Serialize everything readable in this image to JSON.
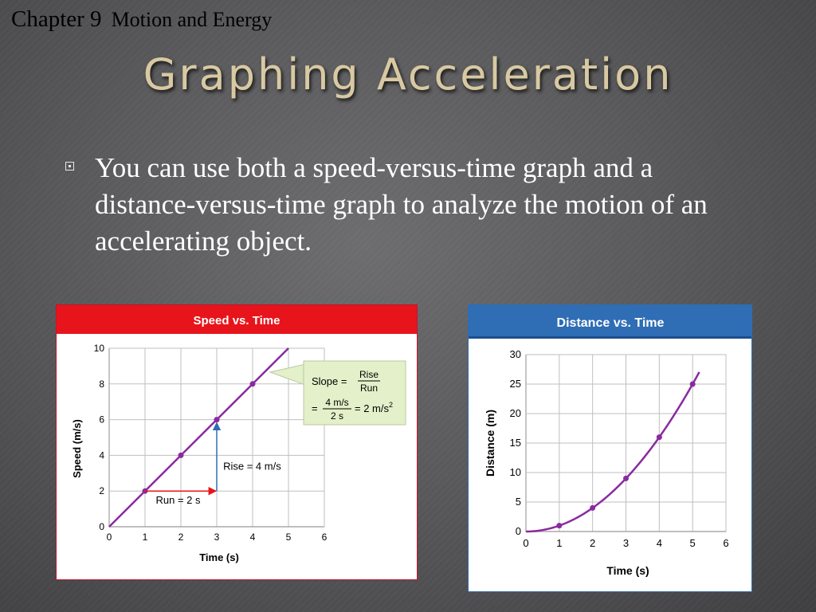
{
  "header": {
    "chapter_number": "Chapter 9",
    "chapter_title": "Motion and Energy",
    "slide_title": "Graphing Acceleration"
  },
  "body": {
    "bullet": "You can use both a speed-versus-time graph and a distance-versus-time graph to analyze the motion of an accelerating object."
  },
  "colors": {
    "speed_header": "#e8141b",
    "distance_header": "#2f6db5",
    "line": "#8a2aa0",
    "title_text": "#d8c9a2"
  },
  "chart_data": [
    {
      "type": "line",
      "title": "Speed vs. Time",
      "xlabel": "Time (s)",
      "ylabel": "Speed (m/s)",
      "xlim": [
        0,
        6
      ],
      "ylim": [
        0,
        10
      ],
      "xticks": [
        "0",
        "1",
        "2",
        "3",
        "4",
        "5",
        "6"
      ],
      "yticks": [
        "0",
        "2",
        "4",
        "6",
        "8",
        "10"
      ],
      "grid": true,
      "line": {
        "x": [
          0,
          5
        ],
        "y": [
          0,
          10
        ]
      },
      "points": {
        "x": [
          1,
          2,
          3,
          4
        ],
        "y": [
          2,
          4,
          6,
          8
        ]
      },
      "annotations": {
        "run_label": "Run = 2 s",
        "rise_label": "Rise = 4 m/s",
        "slope_label": "Slope =",
        "slope_num": "Rise",
        "slope_den": "Run",
        "calc_eq": "=",
        "calc_num": "4 m/s",
        "calc_den": "2 s",
        "calc_result": "= 2 m/s",
        "calc_exp": "2"
      }
    },
    {
      "type": "line",
      "title": "Distance vs. Time",
      "xlabel": "Time (s)",
      "ylabel": "Distance (m)",
      "xlim": [
        0,
        6
      ],
      "ylim": [
        0,
        30
      ],
      "xticks": [
        "0",
        "1",
        "2",
        "3",
        "4",
        "5",
        "6"
      ],
      "yticks": [
        "0",
        "5",
        "10",
        "15",
        "20",
        "25",
        "30"
      ],
      "grid": true,
      "curve_function": "y = x^2",
      "curve_range": [
        0,
        5.2
      ],
      "points": {
        "x": [
          1,
          2,
          3,
          4,
          5
        ],
        "y": [
          1,
          4,
          9,
          16,
          25
        ]
      }
    }
  ]
}
